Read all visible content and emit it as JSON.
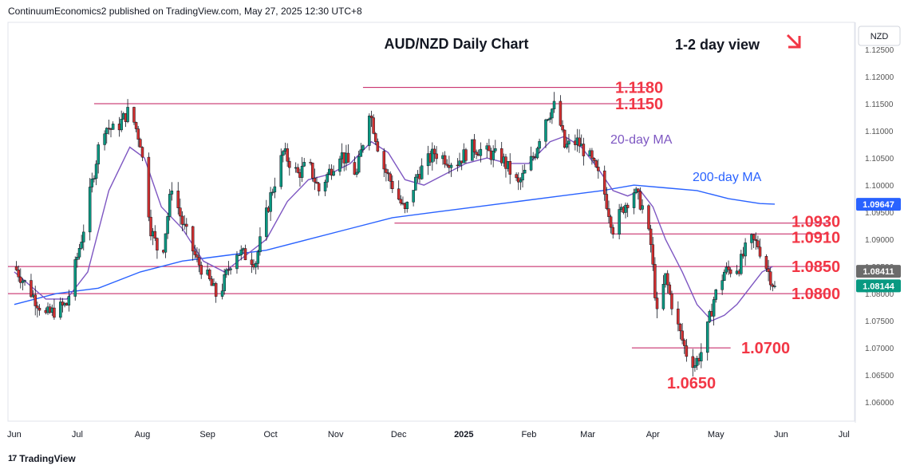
{
  "header": {
    "published": "ContinuumEconomics2 published on TradingView.com, May 27, 2025 12:30 UTC+8"
  },
  "footer": {
    "brand": "TradingView",
    "logo_icon": "tradingview-logo-icon"
  },
  "chart_data": {
    "type": "candlestick",
    "title": "AUD/NZD Daily Chart",
    "subtitle": "1-2 day view",
    "view_direction": "down",
    "arrow_color": "#f23645",
    "currency_label": "NZD",
    "ylim": [
      1.0565,
      1.13
    ],
    "y_ticks": [
      "1.12500",
      "1.12000",
      "1.11500",
      "1.11000",
      "1.10500",
      "1.10000",
      "1.09500",
      "1.09000",
      "1.08500",
      "1.08000",
      "1.07500",
      "1.07000",
      "1.06500",
      "1.06000"
    ],
    "x_labels": [
      "Jun",
      "Jul",
      "Aug",
      "Sep",
      "Oct",
      "Nov",
      "Dec",
      "2025",
      "Feb",
      "Mar",
      "Apr",
      "May",
      "Jun",
      "Jul"
    ],
    "x_label_positions_days": [
      0,
      30,
      61,
      92,
      122,
      153,
      183,
      214,
      245,
      273,
      304,
      334,
      365,
      395
    ],
    "x_range_days": [
      -3,
      400
    ],
    "level_lines": [
      {
        "label": "1.1180",
        "value": 1.118,
        "x_from": 166,
        "x_to": 301
      },
      {
        "label": "1.1150",
        "value": 1.115,
        "x_from": 38,
        "x_to": 301
      },
      {
        "label": "1.0930",
        "value": 1.093,
        "x_from": 181,
        "x_to": 388
      },
      {
        "label": "1.0910",
        "value": 1.091,
        "x_from": 285,
        "x_to": 388
      },
      {
        "label": "1.0850",
        "value": 1.085,
        "x_from": -3,
        "x_to": 388
      },
      {
        "label": "1.0800",
        "value": 1.08,
        "x_from": -3,
        "x_to": 388
      },
      {
        "label": "1.0700",
        "value": 1.07,
        "x_from": 294,
        "x_to": 341
      }
    ],
    "level_label_color": "#f23645",
    "level_line_color": "#c2185b",
    "ma_labels": [
      {
        "text": "20-day MA",
        "color": "#7e57c2"
      },
      {
        "text": "200-day MA",
        "color": "#2962ff"
      }
    ],
    "ma20_color": "#7e57c2",
    "ma200_color": "#2962ff",
    "up_color": "#089981",
    "down_color": "#d32f2f",
    "price_badges": [
      {
        "label": "1.09647",
        "value": 1.09647,
        "color": "#2962ff"
      },
      {
        "label": "1.08411",
        "value": 1.08411,
        "color": "#6b6b6b"
      },
      {
        "label": "1.08144",
        "value": 1.08144,
        "color": "#089981"
      }
    ],
    "series": [
      {
        "name": "AUD/NZD",
        "points": [
          [
            0,
            1.085
          ],
          [
            15,
            1.076
          ],
          [
            25,
            1.078
          ],
          [
            33,
            1.092
          ],
          [
            42,
            1.111
          ],
          [
            48,
            1.11
          ],
          [
            55,
            1.114
          ],
          [
            60,
            1.108
          ],
          [
            65,
            1.092
          ],
          [
            70,
            1.086
          ],
          [
            75,
            1.1
          ],
          [
            80,
            1.093
          ],
          [
            87,
            1.086
          ],
          [
            92,
            1.083
          ],
          [
            97,
            1.079
          ],
          [
            105,
            1.088
          ],
          [
            115,
            1.086
          ],
          [
            122,
            1.098
          ],
          [
            128,
            1.106
          ],
          [
            135,
            1.102
          ],
          [
            140,
            1.104
          ],
          [
            145,
            1.099
          ],
          [
            155,
            1.106
          ],
          [
            163,
            1.102
          ],
          [
            169,
            1.114
          ],
          [
            175,
            1.104
          ],
          [
            180,
            1.1
          ],
          [
            186,
            1.095
          ],
          [
            192,
            1.102
          ],
          [
            200,
            1.106
          ],
          [
            210,
            1.104
          ],
          [
            218,
            1.107
          ],
          [
            225,
            1.106
          ],
          [
            232,
            1.105
          ],
          [
            240,
            1.1
          ],
          [
            248,
            1.106
          ],
          [
            252,
            1.112
          ],
          [
            258,
            1.115
          ],
          [
            262,
            1.107
          ],
          [
            268,
            1.108
          ],
          [
            274,
            1.105
          ],
          [
            280,
            1.1
          ],
          [
            285,
            1.092
          ],
          [
            290,
            1.096
          ],
          [
            295,
            1.099
          ],
          [
            299,
            1.096
          ],
          [
            303,
            1.089
          ],
          [
            306,
            1.076
          ],
          [
            310,
            1.083
          ],
          [
            315,
            1.075
          ],
          [
            320,
            1.069
          ],
          [
            324,
            1.067
          ],
          [
            328,
            1.07
          ],
          [
            333,
            1.079
          ],
          [
            338,
            1.084
          ],
          [
            345,
            1.085
          ],
          [
            350,
            1.09
          ],
          [
            354,
            1.089
          ],
          [
            357,
            1.086
          ],
          [
            361,
            1.082
          ],
          [
            362,
            1.0814
          ]
        ]
      },
      {
        "name": "20-day MA",
        "points": [
          [
            0,
            1.084
          ],
          [
            15,
            1.079
          ],
          [
            25,
            1.079
          ],
          [
            35,
            1.084
          ],
          [
            45,
            1.099
          ],
          [
            55,
            1.107
          ],
          [
            62,
            1.105
          ],
          [
            70,
            1.096
          ],
          [
            80,
            1.092
          ],
          [
            90,
            1.086
          ],
          [
            100,
            1.084
          ],
          [
            110,
            1.087
          ],
          [
            120,
            1.09
          ],
          [
            130,
            1.097
          ],
          [
            140,
            1.101
          ],
          [
            150,
            1.102
          ],
          [
            160,
            1.104
          ],
          [
            170,
            1.108
          ],
          [
            178,
            1.106
          ],
          [
            186,
            1.101
          ],
          [
            195,
            1.1
          ],
          [
            205,
            1.102
          ],
          [
            215,
            1.104
          ],
          [
            225,
            1.105
          ],
          [
            235,
            1.104
          ],
          [
            245,
            1.104
          ],
          [
            255,
            1.108
          ],
          [
            262,
            1.109
          ],
          [
            270,
            1.107
          ],
          [
            278,
            1.103
          ],
          [
            285,
            1.099
          ],
          [
            292,
            1.098
          ],
          [
            298,
            1.099
          ],
          [
            304,
            1.096
          ],
          [
            310,
            1.09
          ],
          [
            318,
            1.084
          ],
          [
            325,
            1.078
          ],
          [
            332,
            1.075
          ],
          [
            338,
            1.076
          ],
          [
            344,
            1.078
          ],
          [
            350,
            1.081
          ],
          [
            356,
            1.084
          ],
          [
            361,
            1.085
          ]
        ]
      },
      {
        "name": "200-day MA",
        "points": [
          [
            0,
            1.078
          ],
          [
            20,
            1.08
          ],
          [
            40,
            1.081
          ],
          [
            60,
            1.084
          ],
          [
            80,
            1.086
          ],
          [
            100,
            1.087
          ],
          [
            120,
            1.088
          ],
          [
            140,
            1.09
          ],
          [
            160,
            1.092
          ],
          [
            180,
            1.094
          ],
          [
            200,
            1.095
          ],
          [
            220,
            1.096
          ],
          [
            240,
            1.097
          ],
          [
            260,
            1.098
          ],
          [
            280,
            1.099
          ],
          [
            295,
            1.1
          ],
          [
            310,
            1.0995
          ],
          [
            325,
            1.099
          ],
          [
            340,
            1.0975
          ],
          [
            355,
            1.0966
          ],
          [
            362,
            1.0965
          ]
        ]
      }
    ]
  }
}
